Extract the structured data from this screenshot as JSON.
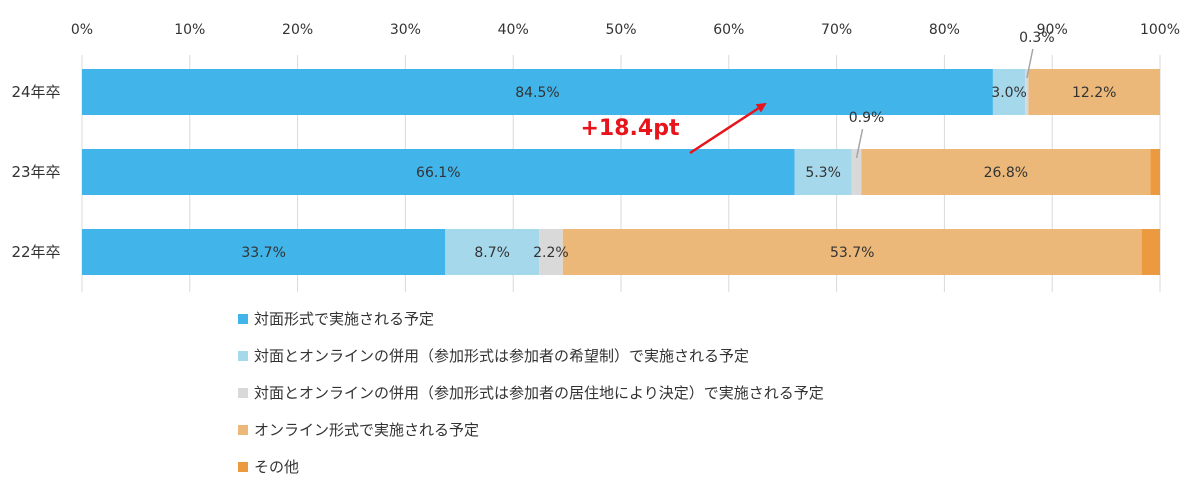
{
  "chart_data": {
    "type": "bar",
    "orientation": "horizontal",
    "stacked": true,
    "percent_axis": true,
    "xlim": [
      0,
      100
    ],
    "x_ticks": [
      "0%",
      "10%",
      "20%",
      "30%",
      "40%",
      "50%",
      "60%",
      "70%",
      "80%",
      "90%",
      "100%"
    ],
    "categories": [
      "24年卒",
      "23年卒",
      "22年卒"
    ],
    "series": [
      {
        "name": "対面形式で実施される予定",
        "color": "#41b4e9",
        "values": [
          84.5,
          66.1,
          33.7
        ],
        "labels": [
          "84.5%",
          "66.1%",
          "33.7%"
        ]
      },
      {
        "name": "対面とオンラインの併用（参加形式は参加者の希望制）で実施される予定",
        "color": "#a6d8ec",
        "values": [
          3.0,
          5.3,
          8.7
        ],
        "labels": [
          "3.0%",
          "5.3%",
          "8.7%"
        ]
      },
      {
        "name": "対面とオンラインの併用（参加形式は参加者の居住地により決定）で実施される予定",
        "color": "#d9d9d9",
        "values": [
          0.3,
          0.9,
          2.2
        ],
        "labels": [
          "0.3%",
          "0.9%",
          "2.2%"
        ]
      },
      {
        "name": "オンライン形式で実施される予定",
        "color": "#ecb87a",
        "values": [
          12.2,
          26.8,
          53.7
        ],
        "labels": [
          "12.2%",
          "26.8%",
          "53.7%"
        ]
      },
      {
        "name": "その他",
        "color": "#ec9a3f",
        "values": [
          0.0,
          0.9,
          1.7
        ],
        "labels": [
          "",
          "",
          ""
        ]
      }
    ],
    "annotations": [
      {
        "text": "+18.4pt",
        "color": "#e8141c",
        "kind": "arrow"
      }
    ],
    "grid": true,
    "legend_position": "bottom-left"
  }
}
